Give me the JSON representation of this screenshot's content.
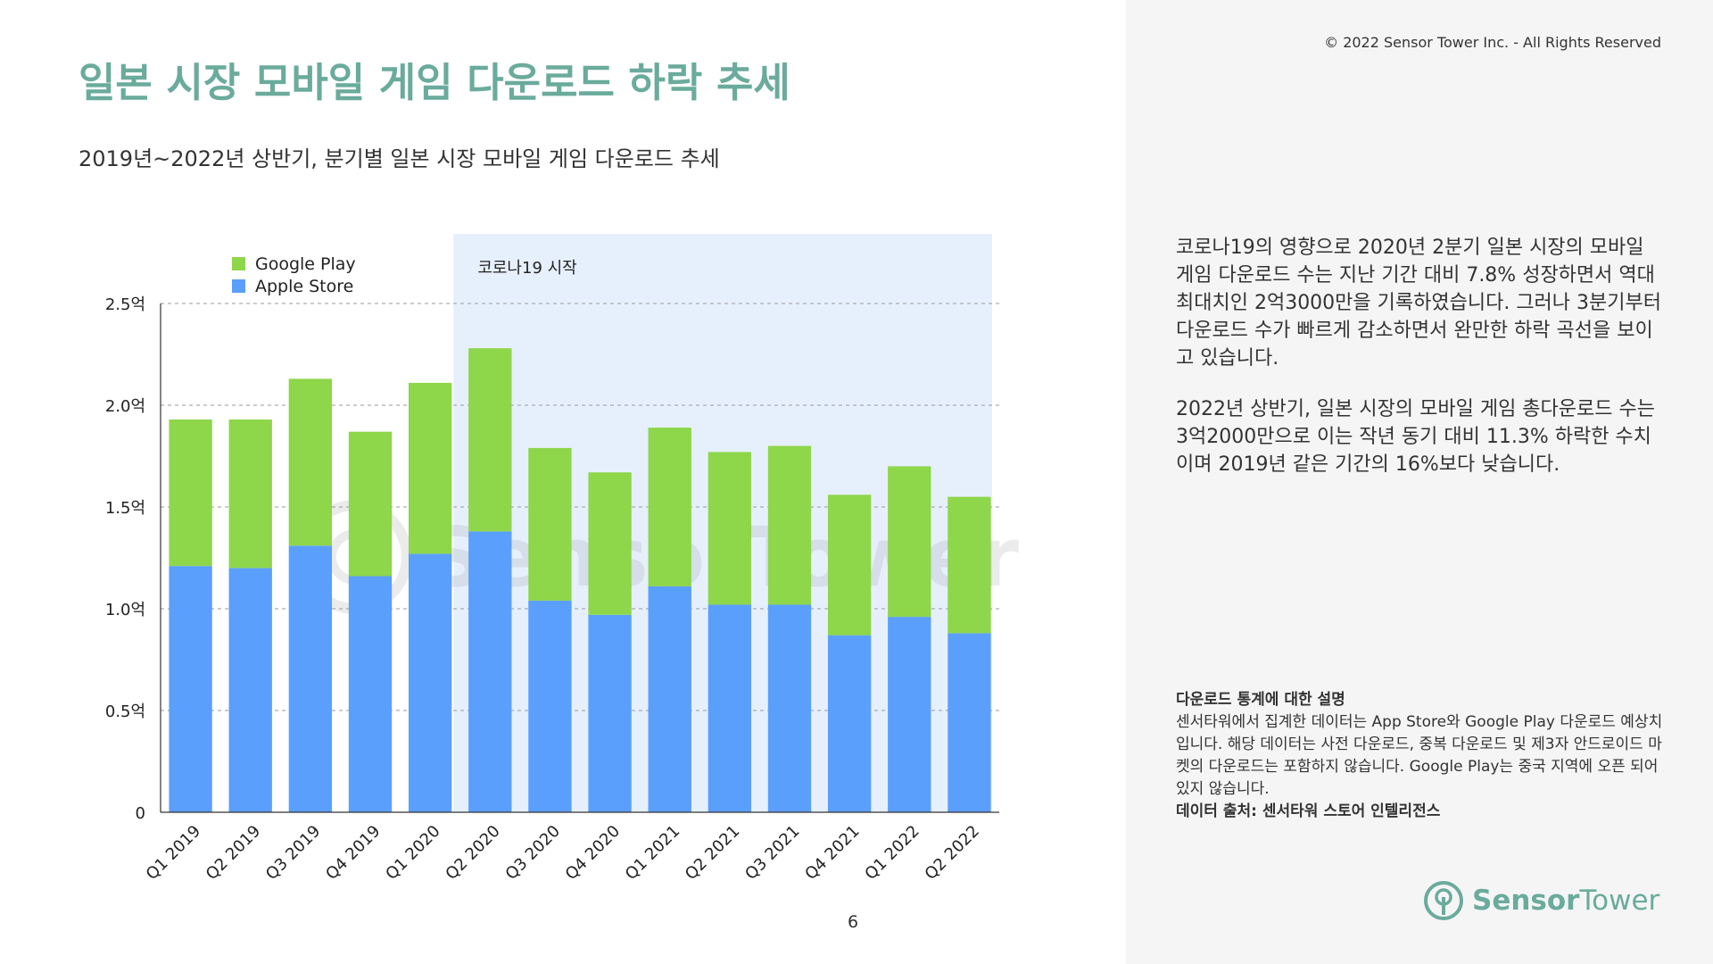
{
  "header": {
    "title": "일본 시장 모바일 게임 다운로드 하락 추세",
    "subtitle": "2019년~2022년 상반기, 분기별 일본 시장 모바일 게임 다운로드 추세",
    "copyright": "© 2022 Sensor Tower Inc. - All Rights Reserved"
  },
  "chart_data": {
    "type": "bar",
    "stacked": true,
    "categories": [
      "Q1 2019",
      "Q2 2019",
      "Q3 2019",
      "Q4 2019",
      "Q1 2020",
      "Q2 2020",
      "Q3 2020",
      "Q4 2020",
      "Q1 2021",
      "Q2 2021",
      "Q3 2021",
      "Q4 2021",
      "Q1 2022",
      "Q2 2022"
    ],
    "series": [
      {
        "name": "Apple Store",
        "color": "#5b9ffc",
        "values": [
          1.21,
          1.2,
          1.31,
          1.16,
          1.27,
          1.38,
          1.04,
          0.97,
          1.11,
          1.02,
          1.02,
          0.87,
          0.96,
          0.88
        ]
      },
      {
        "name": "Google Play",
        "color": "#8ed64a",
        "values": [
          0.72,
          0.73,
          0.82,
          0.71,
          0.84,
          0.9,
          0.75,
          0.7,
          0.78,
          0.75,
          0.78,
          0.69,
          0.74,
          0.67
        ]
      }
    ],
    "legend_order": [
      "Google Play",
      "Apple Store"
    ],
    "ylim": [
      0,
      2.5
    ],
    "yticks": [
      0,
      0.5,
      1.0,
      1.5,
      2.0,
      2.5
    ],
    "ytick_labels": [
      "0",
      "0.5억",
      "1.0억",
      "1.5억",
      "2.0억",
      "2.5억"
    ],
    "grid": "horizontal dashed",
    "legend_position": "top-left",
    "annotation": {
      "label": "코로나19 시작",
      "from_category": "Q2 2020",
      "color": "#e6f0fc"
    },
    "watermark": "SensorTower"
  },
  "description": {
    "paragraphs": [
      "코로나19의 영향으로 2020년 2분기 일본 시장의 모바일 게임 다운로드 수는 지난 기간 대비 7.8% 성장하면서 역대 최대치인 2억3000만을 기록하였습니다. 그러나 3분기부터 다운로드 수가 빠르게 감소하면서 완만한 하락 곡선을 보이고 있습니다.",
      "2022년 상반기, 일본 시장의 모바일 게임 총다운로드 수는 3억2000만으로 이는 작년 동기 대비 11.3% 하락한 수치이며 2019년 같은 기간의 16%보다 낮습니다."
    ]
  },
  "notes": {
    "heading": "다운로드 통계에 대한 설명",
    "body": "센서타워에서 집계한 데이터는 App Store와 Google Play 다운로드 예상치입니다. 해당 데이터는 사전 다운로드, 중복 다운로드 및 제3자 안드로이드 마켓의 다운로드는 포함하지 않습니다. Google Play는 중국 지역에 오픈 되어있지 않습니다.",
    "source": "데이터 출처: 센서타워 스토어 인텔리전스"
  },
  "footer": {
    "page_number": "6",
    "logo_sensor": "Sensor",
    "logo_tower": "Tower",
    "logo_icon": "sensor-tower-logo-icon"
  }
}
